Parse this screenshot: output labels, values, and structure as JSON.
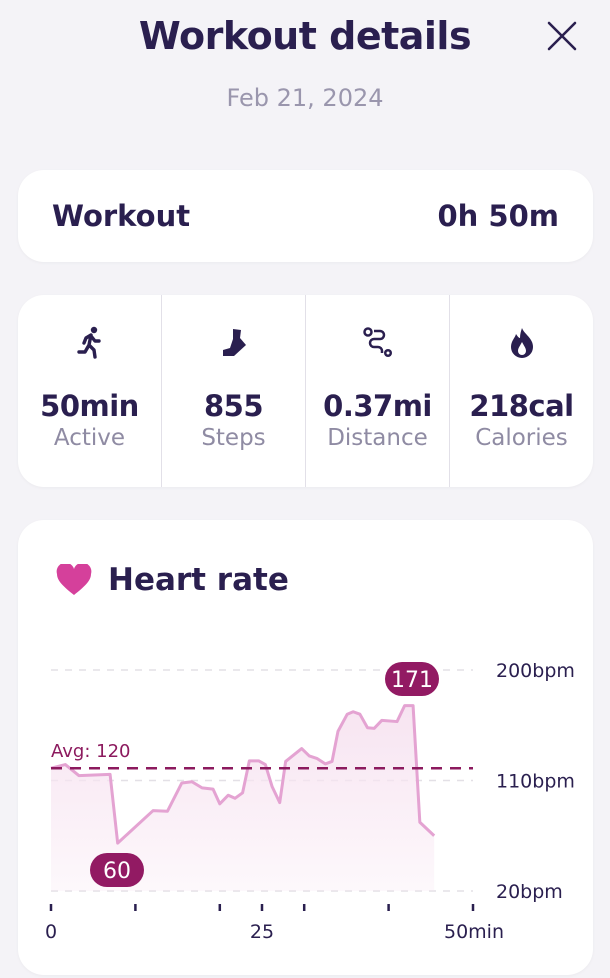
{
  "header": {
    "title": "Workout details",
    "date": "Feb 21, 2024",
    "close_icon": "close-icon"
  },
  "summary": {
    "label": "Workout",
    "duration": "0h 50m"
  },
  "stats": [
    {
      "icon": "running-icon",
      "value": "50min",
      "label": "Active"
    },
    {
      "icon": "foot-icon",
      "value": "855",
      "label": "Steps"
    },
    {
      "icon": "route-icon",
      "value": "0.37mi",
      "label": "Distance"
    },
    {
      "icon": "flame-icon",
      "value": "218cal",
      "label": "Calories"
    }
  ],
  "heart_rate": {
    "title": "Heart rate",
    "icon": "heart-icon"
  },
  "chart_data": {
    "type": "area",
    "title": "Heart rate",
    "x_unit": "min",
    "y_unit": "bpm",
    "xlim": [
      0,
      50
    ],
    "ylim": [
      20,
      200
    ],
    "x_ticks": [
      0,
      10,
      20,
      25,
      30,
      40,
      50
    ],
    "x_tick_labels": {
      "0": "0",
      "25": "25",
      "50": "50min"
    },
    "y_ticks": [
      20,
      110,
      200
    ],
    "y_tick_labels": [
      "20bpm",
      "110bpm",
      "200bpm"
    ],
    "grid": true,
    "average": {
      "value": 120,
      "label": "Avg: 120"
    },
    "min_label": "60",
    "max_label": "171",
    "colors": {
      "line": "#e4a3d2",
      "fill": "#f7e4f1",
      "avg": "#8c1a5e",
      "badge": "#921a63",
      "heart": "#d5409b"
    },
    "points": [
      [
        0,
        120
      ],
      [
        1.7,
        123
      ],
      [
        3.3,
        114
      ],
      [
        7,
        115
      ],
      [
        7.9,
        59
      ],
      [
        12.1,
        85.5
      ],
      [
        13.8,
        85
      ],
      [
        15.5,
        108
      ],
      [
        16.7,
        109
      ],
      [
        17.9,
        104
      ],
      [
        19.2,
        103
      ],
      [
        20,
        91
      ],
      [
        21,
        98
      ],
      [
        21.8,
        95.5
      ],
      [
        22.7,
        100
      ],
      [
        23.5,
        126
      ],
      [
        24.6,
        126
      ],
      [
        25.4,
        123
      ],
      [
        26.2,
        105
      ],
      [
        27.1,
        92
      ],
      [
        27.8,
        125.5
      ],
      [
        29.7,
        136
      ],
      [
        30.6,
        130
      ],
      [
        31.5,
        128
      ],
      [
        32.5,
        123.5
      ],
      [
        33.3,
        125.5
      ],
      [
        34,
        150
      ],
      [
        35.1,
        164
      ],
      [
        35.8,
        166
      ],
      [
        36.6,
        164
      ],
      [
        37.5,
        153
      ],
      [
        38.3,
        152.5
      ],
      [
        39.2,
        159
      ],
      [
        41,
        158
      ],
      [
        41.9,
        171
      ],
      [
        42.9,
        171
      ],
      [
        43.7,
        76
      ],
      [
        45.4,
        65
      ]
    ]
  }
}
